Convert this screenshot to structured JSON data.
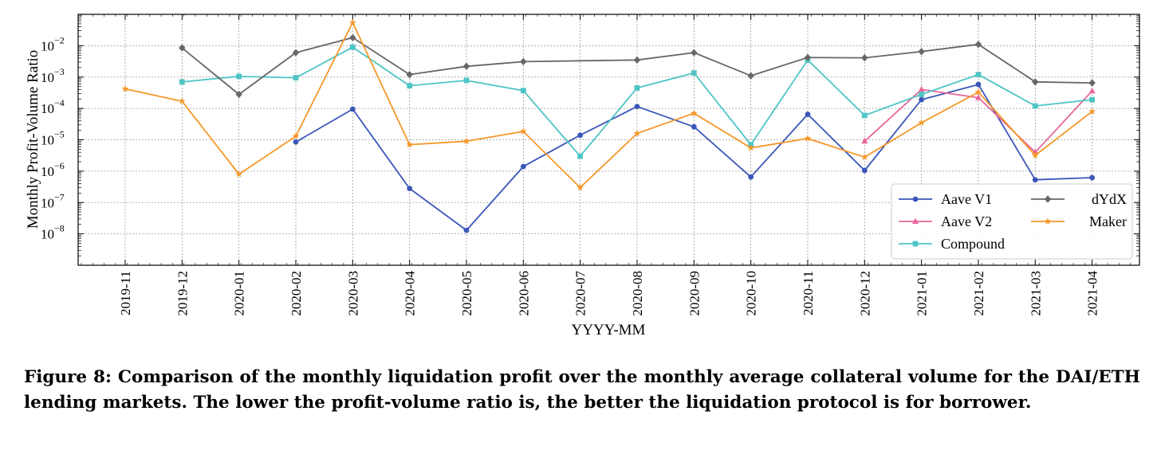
{
  "chart_data": {
    "type": "line",
    "xlabel": "YYYY-MM",
    "ylabel": "Monthly Profit-Volume Ratio",
    "yscale": "log",
    "ylim": [
      1e-09,
      0.1
    ],
    "grid": true,
    "legend_position": "lower-right",
    "categories": [
      "2019-11",
      "2019-12",
      "2020-01",
      "2020-02",
      "2020-03",
      "2020-04",
      "2020-05",
      "2020-06",
      "2020-07",
      "2020-08",
      "2020-09",
      "2020-10",
      "2020-11",
      "2020-12",
      "2021-01",
      "2021-02",
      "2021-03",
      "2021-04"
    ],
    "y_ticks": [
      {
        "value": 1e-08,
        "mant": "10",
        "exp": "−8"
      },
      {
        "value": 1e-07,
        "mant": "10",
        "exp": "−7"
      },
      {
        "value": 1e-06,
        "mant": "10",
        "exp": "−6"
      },
      {
        "value": 1e-05,
        "mant": "10",
        "exp": "−5"
      },
      {
        "value": 0.0001,
        "mant": "10",
        "exp": "−4"
      },
      {
        "value": 0.001,
        "mant": "10",
        "exp": "−3"
      },
      {
        "value": 0.01,
        "mant": "10",
        "exp": "−2"
      }
    ],
    "series": [
      {
        "name": "Aave V1",
        "color": "#3a56b8",
        "marker": "circle",
        "values": [
          null,
          null,
          null,
          8.5e-06,
          9.5e-05,
          2.8e-07,
          1.3e-08,
          1.4e-06,
          1.4e-05,
          0.000115,
          2.6e-05,
          6.5e-07,
          6.5e-05,
          1.05e-06,
          0.00019,
          0.00058,
          5.3e-07,
          6.2e-07
        ]
      },
      {
        "name": "Aave V2",
        "color": "#e8669a",
        "marker": "triangle",
        "values": [
          null,
          null,
          null,
          null,
          null,
          null,
          null,
          null,
          null,
          null,
          null,
          null,
          null,
          9e-06,
          0.0004,
          0.00022,
          4e-06,
          0.00036
        ]
      },
      {
        "name": "Compound",
        "color": "#4fc4c4",
        "marker": "square",
        "values": [
          null,
          0.0007,
          0.00105,
          0.00095,
          0.009,
          0.00053,
          0.00078,
          0.00037,
          3e-06,
          0.00045,
          0.00135,
          7e-06,
          0.0035,
          6e-05,
          0.00028,
          0.0012,
          0.00012,
          0.00019
        ]
      },
      {
        "name": "dYdX",
        "color": "#666666",
        "marker": "diamond",
        "values": [
          null,
          0.0085,
          0.00028,
          0.006,
          0.018,
          0.0012,
          0.0022,
          0.0031,
          null,
          0.0035,
          0.006,
          0.0011,
          0.0042,
          0.0041,
          0.0065,
          0.011,
          0.0007,
          0.00065
        ]
      },
      {
        "name": "Maker",
        "color": "#f5982a",
        "marker": "star",
        "values": [
          0.00042,
          0.00017,
          8e-07,
          1.3e-05,
          0.055,
          7e-06,
          9e-06,
          1.85e-05,
          3e-07,
          1.6e-05,
          7e-05,
          5.5e-06,
          1.1e-05,
          2.8e-06,
          3.5e-05,
          0.00033,
          3.2e-06,
          8e-05
        ]
      }
    ]
  },
  "caption": "Figure 8: Comparison of the monthly liquidation profit over the monthly average collateral volume for the DAI/ETH lending markets. The lower the profit-volume ratio is, the better the liquidation protocol is for bor­rower."
}
